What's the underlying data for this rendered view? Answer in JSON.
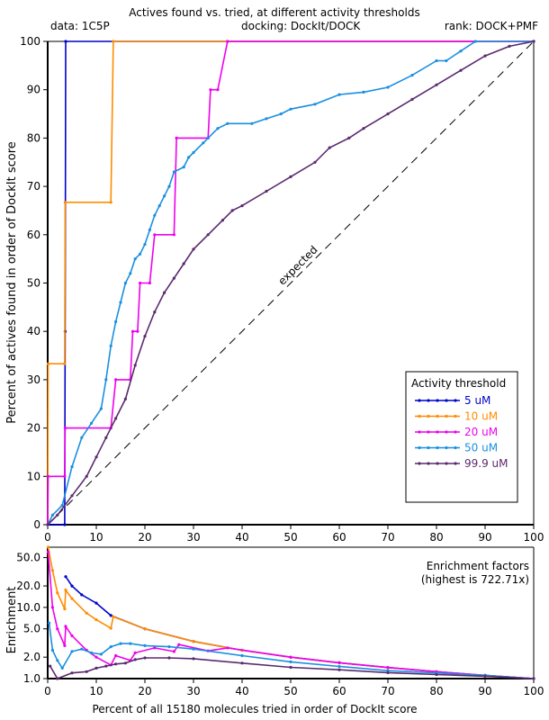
{
  "header": {
    "title": "Actives found vs. tried, at different activity thresholds",
    "data_label": "data: 1C5P",
    "docking_label": "docking: DockIt/DOCK",
    "rank_label": "rank: DOCK+PMF"
  },
  "chart_data": [
    {
      "type": "line",
      "title": "Actives found vs. tried, at different activity thresholds",
      "xlabel": "Percent of all 15180 molecules tried in order of DockIt score",
      "ylabel": "Percent of actives found in order of DockIt score",
      "xlim": [
        0,
        100
      ],
      "ylim": [
        0,
        100
      ],
      "x_ticks": [
        0,
        10,
        20,
        30,
        40,
        50,
        60,
        70,
        80,
        90,
        100
      ],
      "y_ticks": [
        0,
        10,
        20,
        30,
        40,
        50,
        60,
        70,
        80,
        90,
        100
      ],
      "grid": false,
      "reference_line": {
        "label": "expected",
        "from": [
          0,
          0
        ],
        "to": [
          100,
          100
        ]
      },
      "legend": {
        "title": "Activity threshold",
        "placement": "lower-right"
      },
      "series": [
        {
          "name": "5 uM",
          "color": "#0000cc",
          "points": [
            [
              0,
              0
            ],
            [
              3.5,
              0
            ],
            [
              3.6,
              40
            ],
            [
              3.7,
              100
            ],
            [
              100,
              100
            ]
          ]
        },
        {
          "name": "10 uM",
          "color": "#ff8c00",
          "points": [
            [
              0,
              0
            ],
            [
              0.1,
              33.3
            ],
            [
              3.5,
              33.3
            ],
            [
              3.6,
              66.7
            ],
            [
              13.0,
              66.7
            ],
            [
              13.5,
              100
            ],
            [
              100,
              100
            ]
          ]
        },
        {
          "name": "20 uM",
          "color": "#ee00ee",
          "points": [
            [
              0,
              0
            ],
            [
              0.1,
              10
            ],
            [
              3.5,
              10
            ],
            [
              3.6,
              20
            ],
            [
              13,
              20
            ],
            [
              14,
              30
            ],
            [
              17,
              30
            ],
            [
              17.5,
              40
            ],
            [
              18.5,
              40
            ],
            [
              19,
              50
            ],
            [
              21,
              50
            ],
            [
              22,
              60
            ],
            [
              26,
              60
            ],
            [
              26.5,
              80
            ],
            [
              33,
              80
            ],
            [
              33.5,
              90
            ],
            [
              35,
              90
            ],
            [
              37,
              100
            ],
            [
              100,
              100
            ]
          ]
        },
        {
          "name": "50 uM",
          "color": "#1a8fe0",
          "points": [
            [
              0,
              0
            ],
            [
              1,
              2
            ],
            [
              3,
              4
            ],
            [
              5,
              12
            ],
            [
              7,
              18
            ],
            [
              9,
              21
            ],
            [
              11,
              24
            ],
            [
              12,
              30
            ],
            [
              13,
              37
            ],
            [
              14,
              42
            ],
            [
              15,
              46
            ],
            [
              16,
              50
            ],
            [
              17,
              52
            ],
            [
              18,
              55
            ],
            [
              19,
              56
            ],
            [
              20,
              58
            ],
            [
              21,
              61
            ],
            [
              22,
              64
            ],
            [
              23,
              66
            ],
            [
              24,
              68
            ],
            [
              25,
              70
            ],
            [
              26,
              73
            ],
            [
              28,
              74
            ],
            [
              29,
              76
            ],
            [
              30,
              77
            ],
            [
              32,
              79
            ],
            [
              33,
              80
            ],
            [
              35,
              82
            ],
            [
              37,
              83
            ],
            [
              42,
              83
            ],
            [
              45,
              84
            ],
            [
              48,
              85
            ],
            [
              50,
              86
            ],
            [
              55,
              87
            ],
            [
              60,
              89
            ],
            [
              65,
              89.5
            ],
            [
              70,
              90.5
            ],
            [
              75,
              93
            ],
            [
              80,
              96
            ],
            [
              82,
              96
            ],
            [
              85,
              98
            ],
            [
              88,
              100
            ],
            [
              100,
              100
            ]
          ]
        },
        {
          "name": "99.9 uM",
          "color": "#5a2a6e",
          "points": [
            [
              0,
              0
            ],
            [
              2,
              2
            ],
            [
              5,
              6
            ],
            [
              8,
              10
            ],
            [
              10,
              14
            ],
            [
              12,
              18
            ],
            [
              14,
              22
            ],
            [
              16,
              26
            ],
            [
              18,
              33
            ],
            [
              20,
              39
            ],
            [
              22,
              44
            ],
            [
              24,
              48
            ],
            [
              26,
              51
            ],
            [
              28,
              54
            ],
            [
              30,
              57
            ],
            [
              33,
              60
            ],
            [
              36,
              63
            ],
            [
              38,
              65
            ],
            [
              40,
              66
            ],
            [
              45,
              69
            ],
            [
              50,
              72
            ],
            [
              55,
              75
            ],
            [
              58,
              78
            ],
            [
              62,
              80
            ],
            [
              65,
              82
            ],
            [
              70,
              85
            ],
            [
              75,
              88
            ],
            [
              80,
              91
            ],
            [
              85,
              94
            ],
            [
              90,
              97
            ],
            [
              95,
              99
            ],
            [
              100,
              100
            ]
          ]
        }
      ]
    },
    {
      "type": "line",
      "title": "Enrichment factors",
      "subtitle": "(highest is 722.71x)",
      "xlabel": "Percent of all 15180 molecules tried in order of DockIt score",
      "ylabel": "Enrichment",
      "y_scale": "log",
      "xlim": [
        0,
        100
      ],
      "ylim": [
        1.0,
        70
      ],
      "x_ticks": [
        0,
        10,
        20,
        30,
        40,
        50,
        60,
        70,
        80,
        90,
        100
      ],
      "y_tick_labels": [
        "1.0",
        "2.0",
        "5.0",
        "10.0",
        "20.0",
        "50.0"
      ],
      "y_tick_values": [
        1.0,
        2.0,
        5.0,
        10.0,
        20.0,
        50.0
      ],
      "series": [
        {
          "name": "5 uM",
          "color": "#0000cc",
          "points": [
            [
              3.7,
              27
            ],
            [
              5,
              20
            ],
            [
              7,
              15
            ],
            [
              10,
              11.5
            ],
            [
              13,
              7.7
            ],
            [
              20,
              5
            ],
            [
              30,
              3.33
            ],
            [
              40,
              2.5
            ],
            [
              50,
              2
            ],
            [
              60,
              1.67
            ],
            [
              70,
              1.43
            ],
            [
              80,
              1.25
            ],
            [
              90,
              1.11
            ],
            [
              100,
              1
            ]
          ]
        },
        {
          "name": "10 uM",
          "color": "#ff8c00",
          "points": [
            [
              0.1,
              70
            ],
            [
              1,
              33
            ],
            [
              2,
              16
            ],
            [
              3.5,
              9.5
            ],
            [
              3.7,
              17.5
            ],
            [
              5,
              13.3
            ],
            [
              8,
              8.3
            ],
            [
              10,
              6.7
            ],
            [
              13,
              5.1
            ],
            [
              13.5,
              7.4
            ],
            [
              20,
              5
            ],
            [
              30,
              3.33
            ],
            [
              40,
              2.5
            ],
            [
              50,
              2
            ],
            [
              60,
              1.67
            ],
            [
              70,
              1.43
            ],
            [
              80,
              1.25
            ],
            [
              90,
              1.11
            ],
            [
              100,
              1
            ]
          ]
        },
        {
          "name": "20 uM",
          "color": "#ee00ee",
          "points": [
            [
              0.1,
              60
            ],
            [
              1,
              10
            ],
            [
              2,
              5
            ],
            [
              3.5,
              2.9
            ],
            [
              3.7,
              5.4
            ],
            [
              5,
              4
            ],
            [
              8,
              2.5
            ],
            [
              10,
              2
            ],
            [
              13,
              1.55
            ],
            [
              14,
              2.1
            ],
            [
              17,
              1.8
            ],
            [
              18,
              2.3
            ],
            [
              22,
              2.7
            ],
            [
              26,
              2.4
            ],
            [
              27,
              3
            ],
            [
              33,
              2.45
            ],
            [
              37,
              2.7
            ],
            [
              50,
              2
            ],
            [
              60,
              1.67
            ],
            [
              70,
              1.43
            ],
            [
              80,
              1.25
            ],
            [
              90,
              1.11
            ],
            [
              100,
              1
            ]
          ]
        },
        {
          "name": "50 uM",
          "color": "#1a8fe0",
          "points": [
            [
              0.3,
              6
            ],
            [
              1,
              2.5
            ],
            [
              2,
              1.8
            ],
            [
              3,
              1.4
            ],
            [
              5,
              2.4
            ],
            [
              7,
              2.6
            ],
            [
              9,
              2.3
            ],
            [
              11,
              2.2
            ],
            [
              13,
              2.8
            ],
            [
              15,
              3.1
            ],
            [
              17,
              3.1
            ],
            [
              20,
              2.9
            ],
            [
              25,
              2.8
            ],
            [
              30,
              2.6
            ],
            [
              40,
              2.1
            ],
            [
              50,
              1.72
            ],
            [
              60,
              1.48
            ],
            [
              70,
              1.29
            ],
            [
              80,
              1.2
            ],
            [
              90,
              1.11
            ],
            [
              100,
              1
            ]
          ]
        },
        {
          "name": "99.9 uM",
          "color": "#5a2a6e",
          "points": [
            [
              0.5,
              1.5
            ],
            [
              2,
              1.0
            ],
            [
              5,
              1.2
            ],
            [
              8,
              1.25
            ],
            [
              10,
              1.4
            ],
            [
              12,
              1.5
            ],
            [
              14,
              1.6
            ],
            [
              16,
              1.65
            ],
            [
              18,
              1.85
            ],
            [
              20,
              1.95
            ],
            [
              25,
              1.95
            ],
            [
              30,
              1.9
            ],
            [
              40,
              1.65
            ],
            [
              50,
              1.44
            ],
            [
              60,
              1.33
            ],
            [
              70,
              1.21
            ],
            [
              80,
              1.14
            ],
            [
              90,
              1.08
            ],
            [
              100,
              1
            ]
          ]
        }
      ]
    }
  ]
}
